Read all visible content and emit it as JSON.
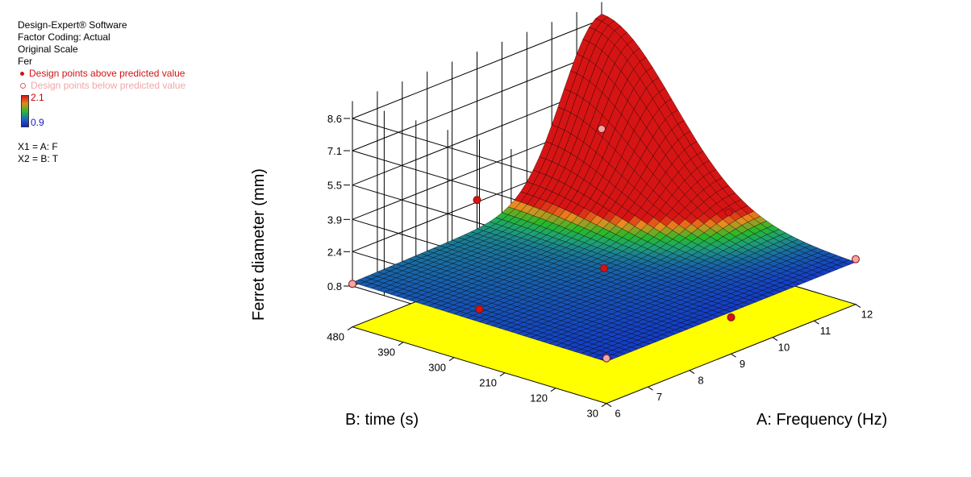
{
  "software": {
    "line1": "Design-Expert® Software",
    "line2": "Factor Coding: Actual",
    "line3": "Original Scale",
    "response": "Fer",
    "legend_above": "Design points above predicted value",
    "legend_below": "Design points below predicted value",
    "color_above": "#d21414",
    "color_below": "#f2a6a6",
    "colorbar_max": "2.1",
    "colorbar_min": "0.9",
    "x1": "X1 = A: F",
    "x2": "X2 = B: T"
  },
  "chart_data": {
    "type": "surface3d",
    "zlabel": "Ferret diameter (mm)",
    "xlabel": "A: Frequency (Hz)",
    "ylabel": "B: time (s)",
    "z_ticks": [
      "0.8",
      "2.4",
      "3.9",
      "5.5",
      "7.1",
      "8.6"
    ],
    "x_ticks": [
      "6",
      "7",
      "8",
      "9",
      "10",
      "11",
      "12"
    ],
    "y_ticks": [
      "30",
      "120",
      "210",
      "300",
      "390",
      "480"
    ],
    "x_range": [
      6,
      12
    ],
    "y_range": [
      30,
      480
    ],
    "z_range": [
      0.8,
      8.6
    ],
    "surface_peak": {
      "frequency": 12,
      "time": 480,
      "ferret": 8.6
    },
    "design_points": [
      {
        "frequency": 6,
        "time": 480,
        "ferret": 0.9,
        "position": "below"
      },
      {
        "frequency": 6,
        "time": 30,
        "ferret": 1.0,
        "position": "below"
      },
      {
        "frequency": 12,
        "time": 30,
        "ferret": 1.0,
        "position": "below"
      },
      {
        "frequency": 12,
        "time": 480,
        "ferret": 3.5,
        "position": "below"
      },
      {
        "frequency": 6,
        "time": 255,
        "ferret": 1.5,
        "position": "above"
      },
      {
        "frequency": 9,
        "time": 480,
        "ferret": 2.5,
        "position": "above"
      },
      {
        "frequency": 12,
        "time": 255,
        "ferret": 1.4,
        "position": "above"
      },
      {
        "frequency": 9,
        "time": 30,
        "ferret": 0.6,
        "position": "above"
      },
      {
        "frequency": 9,
        "time": 255,
        "ferret": 1.1,
        "position": "above"
      }
    ]
  }
}
